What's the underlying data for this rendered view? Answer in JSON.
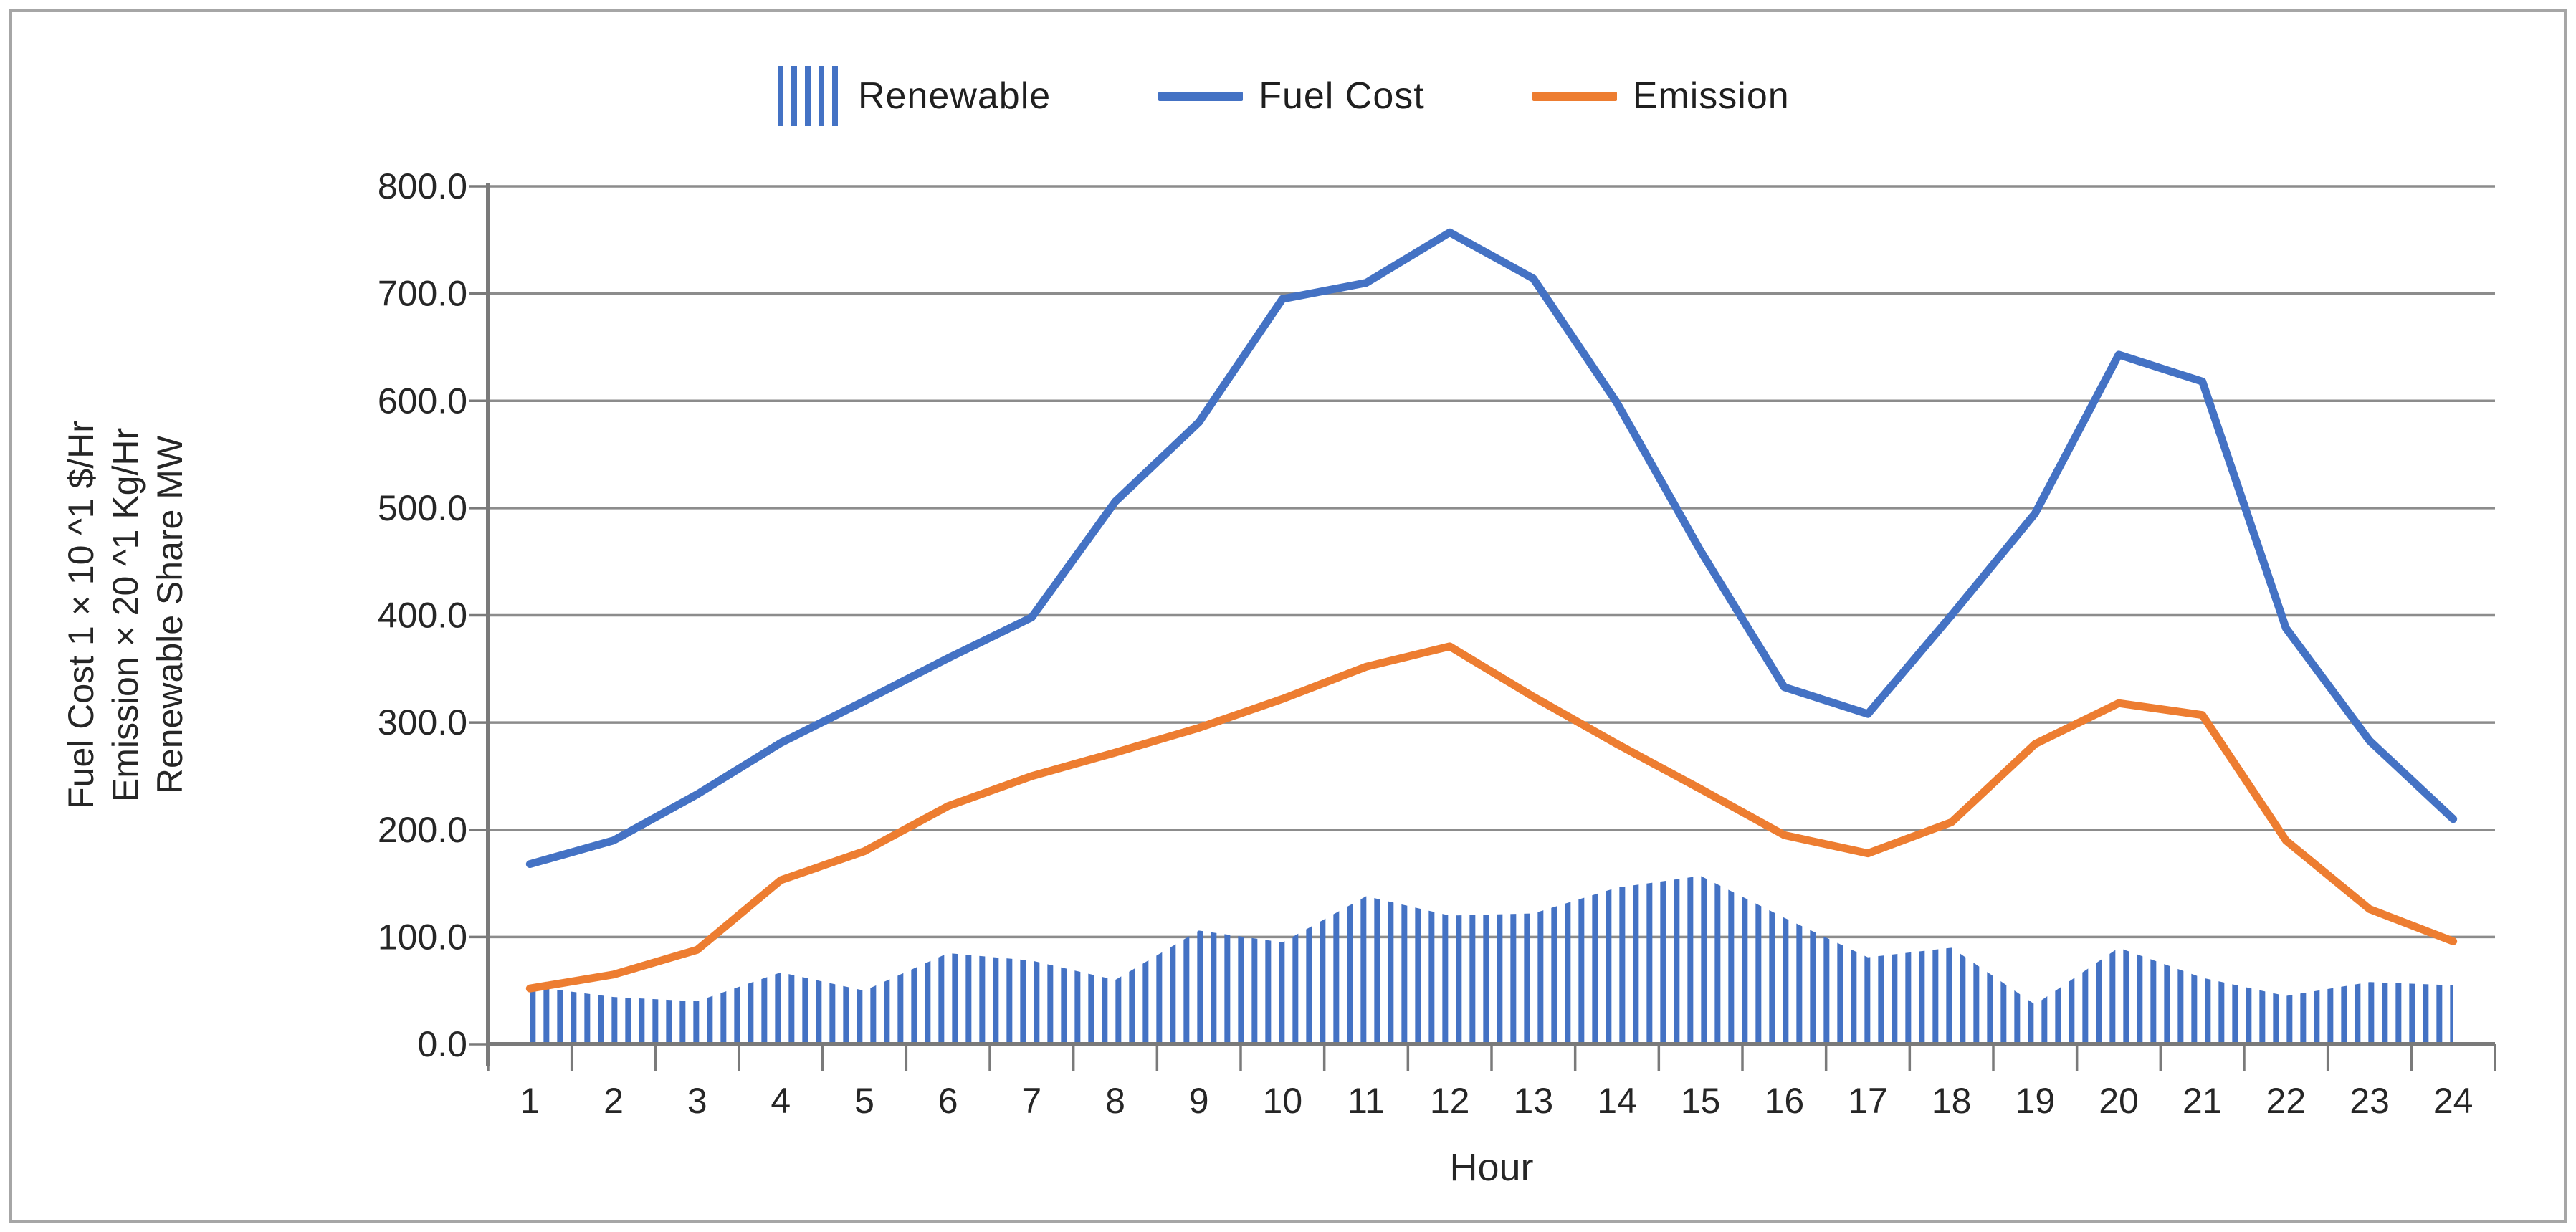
{
  "chart_data": {
    "type": "combo",
    "title": "",
    "xlabel": "Hour",
    "ylabel_lines": [
      "Fuel Cost 1 × 10 ^1  $/Hr",
      "Emission  × 20 ^1 Kg/Hr",
      "Renewable Share  MW"
    ],
    "x": [
      1,
      2,
      3,
      4,
      5,
      6,
      7,
      8,
      9,
      10,
      11,
      12,
      13,
      14,
      15,
      16,
      17,
      18,
      19,
      20,
      21,
      22,
      23,
      24
    ],
    "y_ticks": [
      "0.0",
      "100.0",
      "200.0",
      "300.0",
      "400.0",
      "500.0",
      "600.0",
      "700.0",
      "800.0"
    ],
    "ylim": [
      0,
      800
    ],
    "grid": true,
    "legend_position": "top",
    "series": [
      {
        "name": "Renewable",
        "type": "area-hatch",
        "color": "#4472C4",
        "values": [
          54,
          44,
          40,
          67,
          50,
          85,
          78,
          60,
          106,
          95,
          138,
          120,
          122,
          146,
          157,
          118,
          81,
          90,
          37,
          90,
          62,
          45,
          58,
          55
        ]
      },
      {
        "name": "Fuel Cost",
        "type": "line",
        "color": "#4472C4",
        "values": [
          168,
          190,
          233,
          281,
          320,
          360,
          398,
          506,
          580,
          695,
          710,
          757,
          714,
          598,
          460,
          333,
          308,
          400,
          495,
          643,
          618,
          388,
          283,
          210
        ]
      },
      {
        "name": "Emission",
        "type": "line",
        "color": "#ED7D31",
        "values": [
          52,
          65,
          88,
          153,
          180,
          222,
          250,
          272,
          295,
          322,
          352,
          371,
          324,
          280,
          238,
          195,
          178,
          207,
          280,
          318,
          307,
          190,
          126,
          96
        ]
      }
    ],
    "colors": {
      "blue": "#4472C4",
      "orange": "#ED7D31",
      "grid": "#8C8C8C",
      "axis": "#7A7A7A",
      "text": "#262626",
      "border": "#A6A6A6"
    }
  }
}
